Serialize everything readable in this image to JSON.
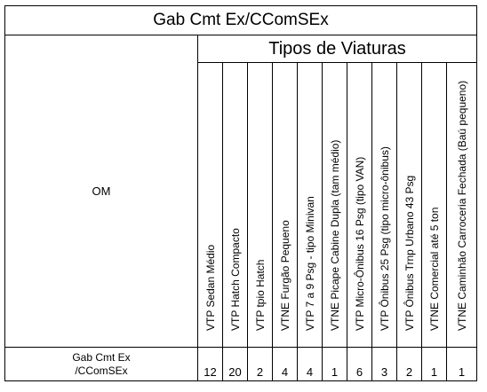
{
  "title": "Gab Cmt Ex/CComSEx",
  "om_header": "OM",
  "subtitle": "Tipos de Viaturas",
  "columns": [
    "VTP Sedan Médio",
    "VTP Hatch Compacto",
    "VTP tpio Hatch",
    "VTNE Furgão Pequeno",
    "VTP 7 a 9 Psg - tipo Minivan",
    "VTNE Picape Cabine Dupla (tam médio)",
    "VTP Micro-Ônibus 16 Psg (tipo VAN)",
    "VTP Ônibus 25 Psg (tipo micro-ônibus)",
    "VTP Ônibus Trnp Urbano 43 Psg",
    "VTNE Comercial até 5 ton",
    "VTNE Caminhão Carroceria Fechada (Baú pequeno)"
  ],
  "row": {
    "label_line1": "Gab Cmt Ex",
    "label_line2": "/CComSEx",
    "values": [
      "12",
      "20",
      "2",
      "4",
      "4",
      "1",
      "6",
      "3",
      "2",
      "1",
      "1"
    ]
  }
}
